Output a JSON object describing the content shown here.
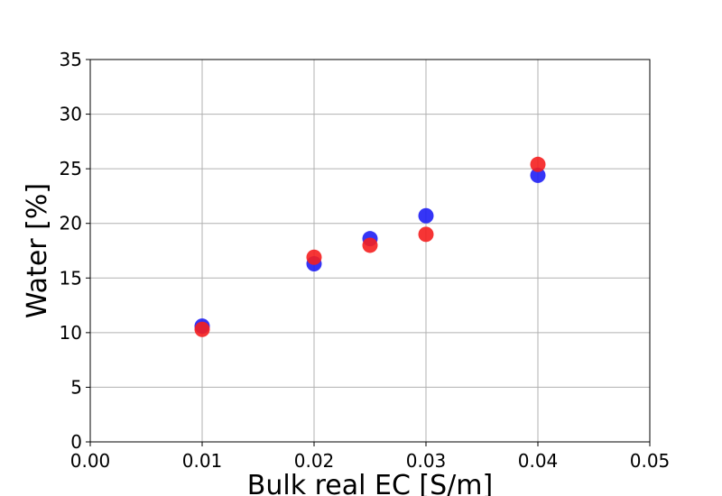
{
  "chart_data": {
    "type": "scatter",
    "title": "",
    "xlabel": "Bulk real EC [S/m]",
    "ylabel": "Water [%]",
    "xlim": [
      0.0,
      0.05
    ],
    "ylim": [
      0,
      35
    ],
    "xticks": [
      "0.00",
      "0.01",
      "0.02",
      "0.03",
      "0.04",
      "0.05"
    ],
    "yticks": [
      "0",
      "5",
      "10",
      "15",
      "20",
      "25",
      "30",
      "35"
    ],
    "grid": true,
    "legend": "none",
    "series": [
      {
        "color": "#1f1ff5",
        "points": [
          {
            "x": 0.01,
            "y": 10.6
          },
          {
            "x": 0.02,
            "y": 16.3
          },
          {
            "x": 0.025,
            "y": 18.6
          },
          {
            "x": 0.03,
            "y": 20.7
          },
          {
            "x": 0.04,
            "y": 24.4
          }
        ]
      },
      {
        "color": "#f51f1f",
        "points": [
          {
            "x": 0.01,
            "y": 10.3
          },
          {
            "x": 0.02,
            "y": 16.9
          },
          {
            "x": 0.025,
            "y": 18.0
          },
          {
            "x": 0.03,
            "y": 19.0
          },
          {
            "x": 0.04,
            "y": 25.4
          }
        ]
      }
    ]
  }
}
